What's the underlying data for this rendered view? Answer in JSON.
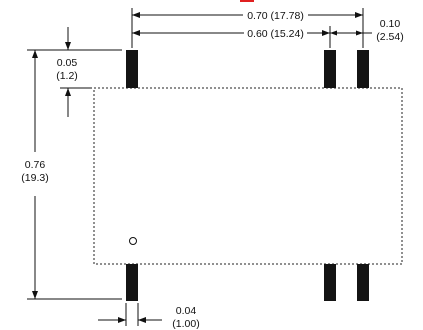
{
  "dimensions": {
    "overall_pin_span": "0.70 (17.78)",
    "inner_pin_span": "0.60 (15.24)",
    "pin_pitch_in": "0.10",
    "pin_pitch_mm": "(2.54)",
    "pin_length_in": "0.05",
    "pin_length_mm": "(1.2)",
    "height_in": "0.76",
    "height_mm": "(19.3)",
    "pin_width_in": "0.04",
    "pin_width_mm": "(1.00)"
  },
  "colors": {
    "line": "#111111",
    "pin": "#141414",
    "outline": "#222222",
    "accent_red": "#e02020"
  }
}
